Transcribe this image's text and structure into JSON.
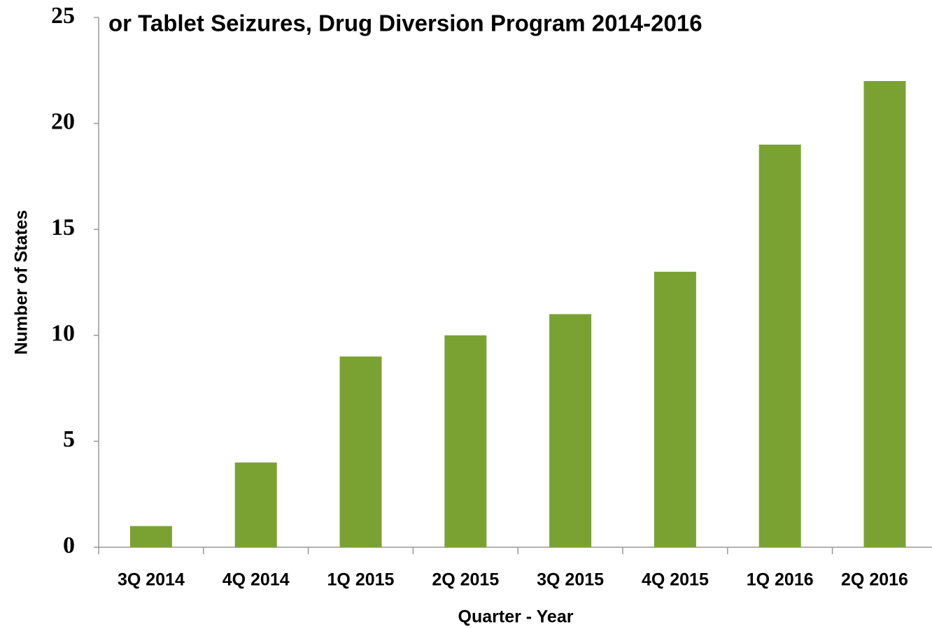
{
  "chart_data": {
    "type": "bar",
    "title": "or Tablet Seizures, Drug Diversion Program 2014-2016",
    "x_label": "Quarter - Year",
    "y_label": "Number of States",
    "categories": [
      "3Q 2014",
      "4Q 2014",
      "1Q 2015",
      "2Q 2015",
      "3Q 2015",
      "4Q 2015",
      "1Q 2016",
      "2Q 2016"
    ],
    "values": [
      1,
      4,
      9,
      10,
      11,
      13,
      19,
      22
    ],
    "color": "#7aa233",
    "ylim": [
      0,
      25
    ],
    "yticks": [
      0,
      5,
      10,
      15,
      20,
      25
    ],
    "grid": false
  }
}
